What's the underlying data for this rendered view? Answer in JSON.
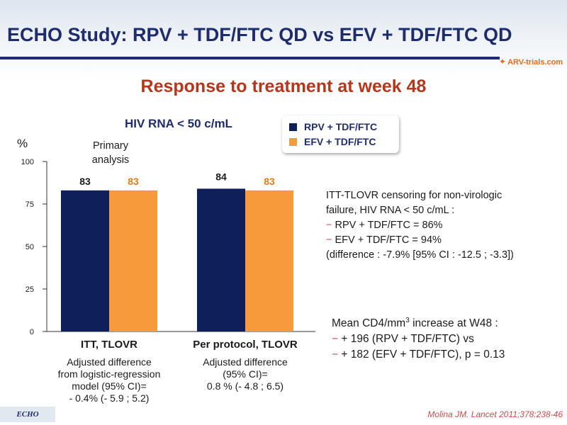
{
  "header": {
    "title": "ECHO Study: RPV + TDF/FTC QD vs EFV + TDF/FTC QD",
    "logo_text": "ARV-trials.com"
  },
  "subtitle": "Response to treatment at week 48",
  "chart_heading": "HIV RNA < 50 c/mL",
  "legend": [
    {
      "label": "RPV + TDF/FTC",
      "color": "#0f1f5a"
    },
    {
      "label": "EFV + TDF/FTC",
      "color": "#f79a3c"
    }
  ],
  "chart_data": {
    "type": "bar",
    "ylabel": "%",
    "ylim": [
      0,
      100
    ],
    "yticks": [
      0,
      25,
      50,
      75,
      100
    ],
    "categories": [
      "ITT, TLOVR",
      "Per protocol, TLOVR"
    ],
    "series": [
      {
        "name": "RPV + TDF/FTC",
        "color": "#0f1f5a",
        "values": [
          83,
          84
        ],
        "label_color": "#1a1a1a"
      },
      {
        "name": "EFV + TDF/FTC",
        "color": "#f79a3c",
        "values": [
          83,
          83
        ],
        "label_color": "#e07b1a"
      }
    ],
    "annotations": {
      "primary_analysis": [
        "Primary",
        "analysis"
      ]
    },
    "category_notes": [
      [
        "Adjusted difference",
        "from logistic-regression",
        "model (95% CI)=",
        "- 0.4% (- 5.9 ; 5.2)"
      ],
      [
        "Adjusted difference",
        "(95% CI)=",
        "0.8 % (- 4.8 ; 6.5)"
      ]
    ]
  },
  "notes": {
    "tlovr": {
      "line1": "ITT-TLOVR censoring for non-virologic",
      "line2": "failure, HIV RNA < 50 c/mL :",
      "item1": "RPV + TDF/FTC = 86%",
      "item2": "EFV + TDF/FTC = 94%",
      "line3": "(difference : -7.9% [95% CI : -12.5 ; -3.3])"
    },
    "cd4": {
      "line1_pre": "Mean CD4/mm",
      "line1_sup": "3",
      "line1_post": " increase at W48 :",
      "item1": "+ 196 (RPV + TDF/FTC) vs",
      "item2": "+ 182 (EFV + TDF/FTC), p = 0.13"
    },
    "dash": "−"
  },
  "footer": {
    "tag": "ECHO",
    "citation": "Molina JM. Lancet 2011;378:238-46"
  }
}
